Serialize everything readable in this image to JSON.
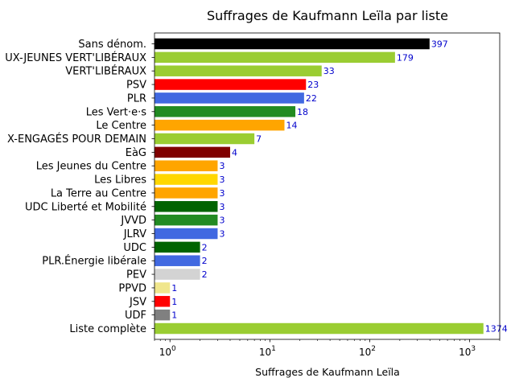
{
  "chart_data": {
    "type": "bar",
    "orientation": "horizontal",
    "title": "Suffrages de Kaufmann Leïla par liste",
    "xlabel": "Suffrages de Kaufmann Leïla",
    "ylabel": "",
    "x_scale": "log",
    "xlim": [
      0.7,
      2000
    ],
    "x_ticks": [
      {
        "value": 1,
        "base": "10",
        "exp": "0"
      },
      {
        "value": 10,
        "base": "10",
        "exp": "1"
      },
      {
        "value": 100,
        "base": "10",
        "exp": "2"
      },
      {
        "value": 1000,
        "base": "10",
        "exp": "3"
      }
    ],
    "grid": false,
    "legend": "none",
    "bars": [
      {
        "category": "Sans dénom.",
        "value": 397,
        "color": "#000000"
      },
      {
        "category": "UX-JEUNES VERT'LIBÉRAUX",
        "value": 179,
        "color": "#9acd32"
      },
      {
        "category": "VERT'LIBÉRAUX",
        "value": 33,
        "color": "#9acd32"
      },
      {
        "category": "PSV",
        "value": 23,
        "color": "#ff0000"
      },
      {
        "category": "PLR",
        "value": 22,
        "color": "#4169e1"
      },
      {
        "category": "Les Vert·e·s",
        "value": 18,
        "color": "#228b22"
      },
      {
        "category": "Le Centre",
        "value": 14,
        "color": "#ffa500"
      },
      {
        "category": "X-ENGAGÉS POUR DEMAIN",
        "value": 7,
        "color": "#9acd32"
      },
      {
        "category": "EàG",
        "value": 4,
        "color": "#800000"
      },
      {
        "category": "Les Jeunes du Centre",
        "value": 3,
        "color": "#ffa500"
      },
      {
        "category": "Les Libres",
        "value": 3,
        "color": "#ffd700"
      },
      {
        "category": "La Terre au Centre",
        "value": 3,
        "color": "#ffa500"
      },
      {
        "category": "UDC Liberté et Mobilité",
        "value": 3,
        "color": "#006400"
      },
      {
        "category": "JVVD",
        "value": 3,
        "color": "#228b22"
      },
      {
        "category": "JLRV",
        "value": 3,
        "color": "#4169e1"
      },
      {
        "category": "UDC",
        "value": 2,
        "color": "#006400"
      },
      {
        "category": "PLR.Énergie libérale",
        "value": 2,
        "color": "#4169e1"
      },
      {
        "category": "PEV",
        "value": 2,
        "color": "#d3d3d3"
      },
      {
        "category": "PPVD",
        "value": 1,
        "color": "#f0e68c"
      },
      {
        "category": "JSV",
        "value": 1,
        "color": "#ff0000"
      },
      {
        "category": "UDF",
        "value": 1,
        "color": "#808080"
      },
      {
        "category": "Liste complète",
        "value": 1374,
        "color": "#9acd32"
      }
    ],
    "value_label_color": "#0000cc"
  }
}
